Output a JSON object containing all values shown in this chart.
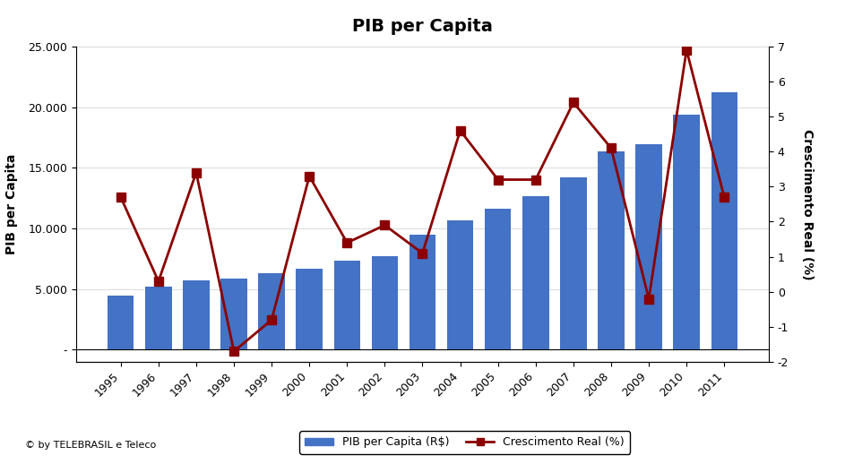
{
  "title": "PIB per Capita",
  "years": [
    1995,
    1996,
    1997,
    1998,
    1999,
    2000,
    2001,
    2002,
    2003,
    2004,
    2005,
    2006,
    2007,
    2008,
    2009,
    2010,
    2011
  ],
  "pib": [
    4441,
    5232,
    5734,
    5890,
    6311,
    6685,
    7318,
    7703,
    9498,
    10692,
    11658,
    12686,
    14218,
    16333,
    16918,
    19394,
    21252
  ],
  "crescimento": [
    2.7,
    0.3,
    3.4,
    -1.7,
    -0.8,
    3.3,
    1.4,
    1.9,
    1.1,
    4.6,
    3.2,
    3.2,
    5.4,
    4.1,
    -0.2,
    6.9,
    2.7
  ],
  "bar_color": "#4472C4",
  "line_color": "#8B0000",
  "ylabel_left": "PIB per Capita",
  "ylabel_right": "Crescimento Real (%)",
  "ylim_left": [
    -1000,
    25000
  ],
  "ylim_right": [
    -2,
    7
  ],
  "yticks_left": [
    0,
    5000,
    10000,
    15000,
    20000,
    25000
  ],
  "ytick_labels_left": [
    "-",
    "5.000",
    "10.000",
    "15.000",
    "20.000",
    "25.000"
  ],
  "yticks_right": [
    -2,
    -1,
    0,
    1,
    2,
    3,
    4,
    5,
    6,
    7
  ],
  "background_color": "#FFFFFF",
  "footer_text": "© by TELEBRASIL e Teleco",
  "legend_bar": "PIB per Capita (R$)",
  "legend_line": "Crescimento Real (%)"
}
